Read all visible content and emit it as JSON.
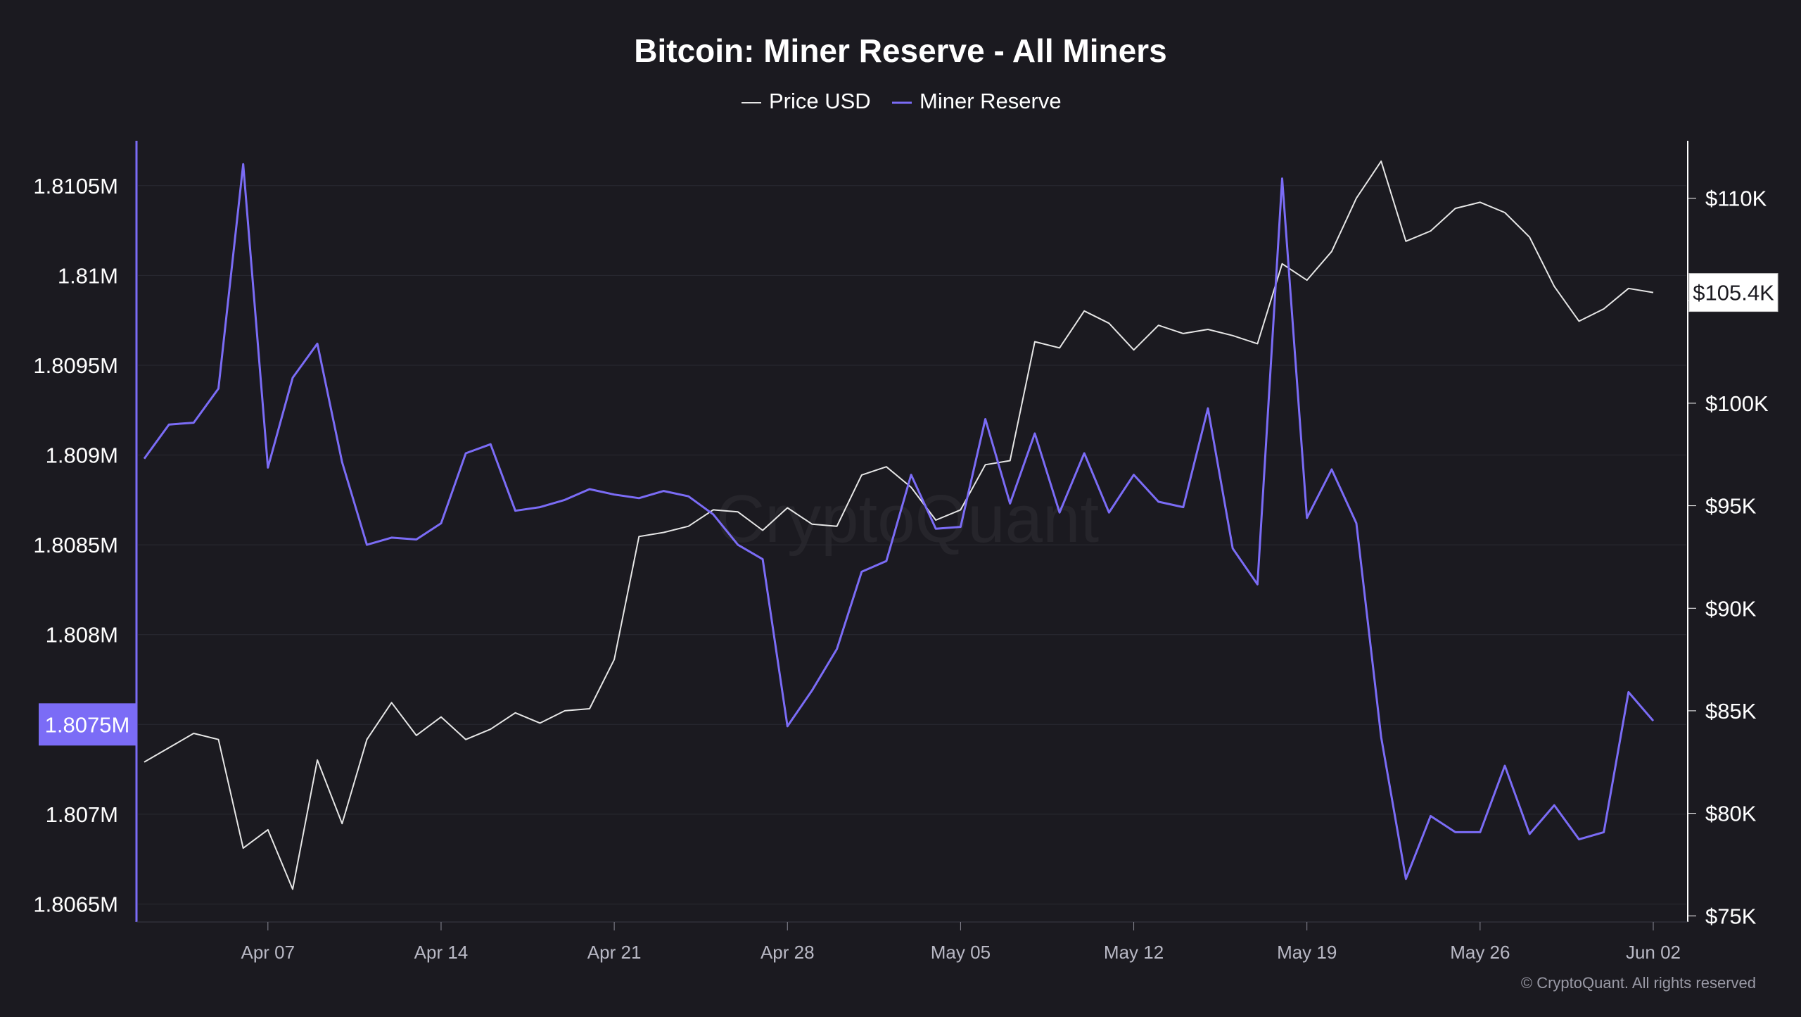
{
  "chart_data": {
    "type": "line",
    "title": "Bitcoin: Miner Reserve - All Miners",
    "legend_position": "top-center",
    "grid": true,
    "watermark": "CryptoQuant",
    "copyright": "© CryptoQuant. All rights reserved",
    "x_axis": {
      "start_date": "Apr 02",
      "tick_labels": [
        "Apr 07",
        "Apr 14",
        "Apr 21",
        "Apr 28",
        "May 05",
        "May 12",
        "May 19",
        "May 26",
        "Jun 02"
      ]
    },
    "y_left": {
      "series": "Miner Reserve",
      "range": [
        1.8064,
        1.81075
      ],
      "tick_values": [
        1.8065,
        1.807,
        1.8075,
        1.808,
        1.8085,
        1.809,
        1.8095,
        1.81,
        1.8105
      ],
      "tick_labels": [
        "1.8065M",
        "1.807M",
        "1.8075M",
        "1.808M",
        "1.8085M",
        "1.809M",
        "1.8095M",
        "1.81M",
        "1.8105M"
      ],
      "current_value_label": "1.8075M",
      "color": "#ffffff",
      "highlight_color": "#7b6cf6"
    },
    "y_right": {
      "series": "Price USD",
      "range": [
        74700,
        112800
      ],
      "tick_values": [
        75000,
        80000,
        85000,
        90000,
        95000,
        100000,
        105000,
        110000
      ],
      "tick_labels": [
        "$75K",
        "$80K",
        "$85K",
        "$90K",
        "$95K",
        "$100K",
        "$105K",
        "$110K"
      ],
      "current_value_label": "$105.4K",
      "current_value": 105400,
      "color": "#ffffff"
    },
    "series": [
      {
        "name": "Price USD",
        "axis": "right",
        "color": "#e6e6e6",
        "values": [
          82500,
          83200,
          83900,
          83600,
          78300,
          79200,
          76300,
          82600,
          79500,
          83600,
          85400,
          83800,
          84700,
          83600,
          84100,
          84900,
          84400,
          85000,
          85100,
          87500,
          93500,
          93700,
          94000,
          94800,
          94700,
          93800,
          94900,
          94100,
          94000,
          96500,
          96900,
          95900,
          94300,
          94800,
          97000,
          97200,
          103000,
          102700,
          104500,
          103900,
          102600,
          103800,
          103400,
          103600,
          103300,
          102900,
          106800,
          106000,
          107400,
          110000,
          111800,
          107900,
          108400,
          109500,
          109800,
          109300,
          108100,
          105700,
          104000,
          104600,
          105600,
          105400
        ]
      },
      {
        "name": "Miner Reserve",
        "axis": "left",
        "color": "#7b6cf6",
        "values": [
          1.80898,
          1.80917,
          1.80918,
          1.80937,
          1.81062,
          1.80893,
          1.80943,
          1.80962,
          1.80896,
          1.8085,
          1.80854,
          1.80853,
          1.80862,
          1.80901,
          1.80906,
          1.80869,
          1.80871,
          1.80875,
          1.80881,
          1.80878,
          1.80876,
          1.8088,
          1.80877,
          1.80867,
          1.8085,
          1.80842,
          1.80749,
          1.80769,
          1.80792,
          1.80835,
          1.80841,
          1.80889,
          1.80859,
          1.8086,
          1.8092,
          1.80873,
          1.80912,
          1.80868,
          1.80901,
          1.80868,
          1.80889,
          1.80874,
          1.80871,
          1.80926,
          1.80848,
          1.80828,
          1.81054,
          1.80865,
          1.80892,
          1.80862,
          1.80743,
          1.80664,
          1.80699,
          1.8069,
          1.8069,
          1.80727,
          1.80689,
          1.80705,
          1.80686,
          1.8069,
          1.80768,
          1.80752
        ]
      }
    ]
  }
}
